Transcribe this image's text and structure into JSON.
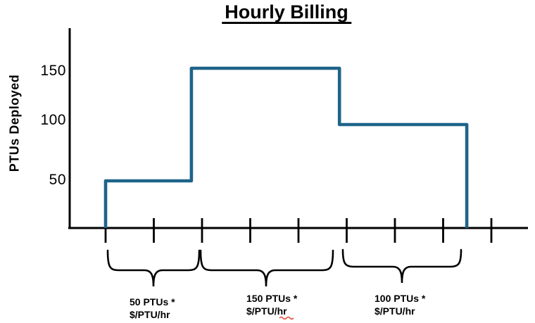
{
  "title": "Hourly Billing",
  "y_axis": {
    "label": "PTUs Deployed",
    "tick_labels": [
      "150",
      "100",
      "50"
    ]
  },
  "segment_labels": [
    {
      "line1": "50 PTUs *",
      "line2": "$/PTU/hr"
    },
    {
      "line1": "150 PTUs *",
      "line2": "$/PTU/hr"
    },
    {
      "line1": "100 PTUs *",
      "line2": "$/PTU/hr"
    }
  ],
  "chart_data": {
    "type": "line",
    "line_style": "step",
    "title": "Hourly Billing",
    "xlabel": "",
    "ylabel": "PTUs Deployed",
    "yticks": [
      50,
      100,
      150
    ],
    "ylim": [
      0,
      175
    ],
    "x_ticks_hours": [
      0,
      1,
      2,
      3,
      4,
      5,
      6,
      7,
      8
    ],
    "grid": false,
    "legend": "none",
    "series": [
      {
        "name": "PTUs Deployed",
        "color": "#1E6389",
        "points": [
          [
            0,
            0
          ],
          [
            0,
            50
          ],
          [
            1.78,
            50
          ],
          [
            1.78,
            150
          ],
          [
            4.85,
            150
          ],
          [
            4.85,
            100
          ],
          [
            7.49,
            100
          ],
          [
            7.49,
            0
          ]
        ]
      }
    ],
    "segments": [
      {
        "hours": [
          0,
          1.78
        ],
        "ptus": 50,
        "billing": "50 PTUs * $/PTU/hr"
      },
      {
        "hours": [
          1.78,
          4.85
        ],
        "ptus": 150,
        "billing": "150 PTUs * $/PTU/hr"
      },
      {
        "hours": [
          4.85,
          7.49
        ],
        "ptus": 100,
        "billing": "100 PTUs * $/PTU/hr"
      }
    ]
  },
  "colors": {
    "line": "#1E6389",
    "axis": "#000000",
    "text": "#000000",
    "squiggle": "#E0442C"
  }
}
